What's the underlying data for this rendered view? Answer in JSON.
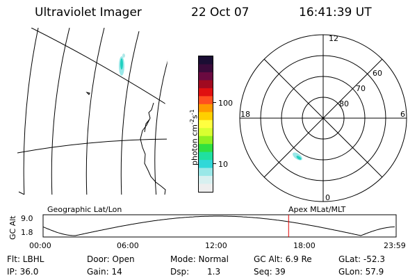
{
  "header": {
    "instrument": "Ultraviolet Imager",
    "date": "22 Oct 07",
    "time": "16:41:39 UT"
  },
  "colorbar": {
    "label_prefix": "photon cm",
    "label_sup1": "-2",
    "label_mid": "s",
    "label_sup2": "-1",
    "ticks": [
      "100",
      "10"
    ],
    "colors_top_to_bottom": [
      "#1a0d33",
      "#3a0a3a",
      "#6a0a40",
      "#a00a20",
      "#e01010",
      "#ff5020",
      "#ff9a00",
      "#ffd000",
      "#ffff40",
      "#d8ff30",
      "#90f020",
      "#30e040",
      "#20e0a0",
      "#30d8d8",
      "#9ae8e8",
      "#d8f0f0",
      "#eeeeee"
    ]
  },
  "polar": {
    "top_label": "12",
    "bottom_label": "0",
    "left_label": "18",
    "right_label": "6",
    "ring_labels": [
      "60",
      "70",
      "80"
    ]
  },
  "altitude_plot": {
    "left_title": "Geographic Lat/Lon",
    "right_title": "Apex MLat/MLT",
    "y_axis_label": "GC Alt",
    "y_ticks": [
      "9.0",
      "1.8"
    ],
    "x_ticks": [
      "00:00",
      "06:00",
      "12:00",
      "18:00",
      "23:59"
    ],
    "current_time_hours": 16.69,
    "marker_color": "#e00000"
  },
  "status": {
    "filter": "Flt: LBHL",
    "ip": "IP: 36.0",
    "door": "Door: Open",
    "gain": "Gain: 14",
    "mode": "Mode: Normal",
    "dsp_label": "Dsp:",
    "dsp_value": "1.3",
    "gc_alt": "GC Alt: 6.9 Re",
    "seq": "Seq: 39",
    "glat": "GLat: -52.3",
    "glon": "GLon: 57.9"
  }
}
